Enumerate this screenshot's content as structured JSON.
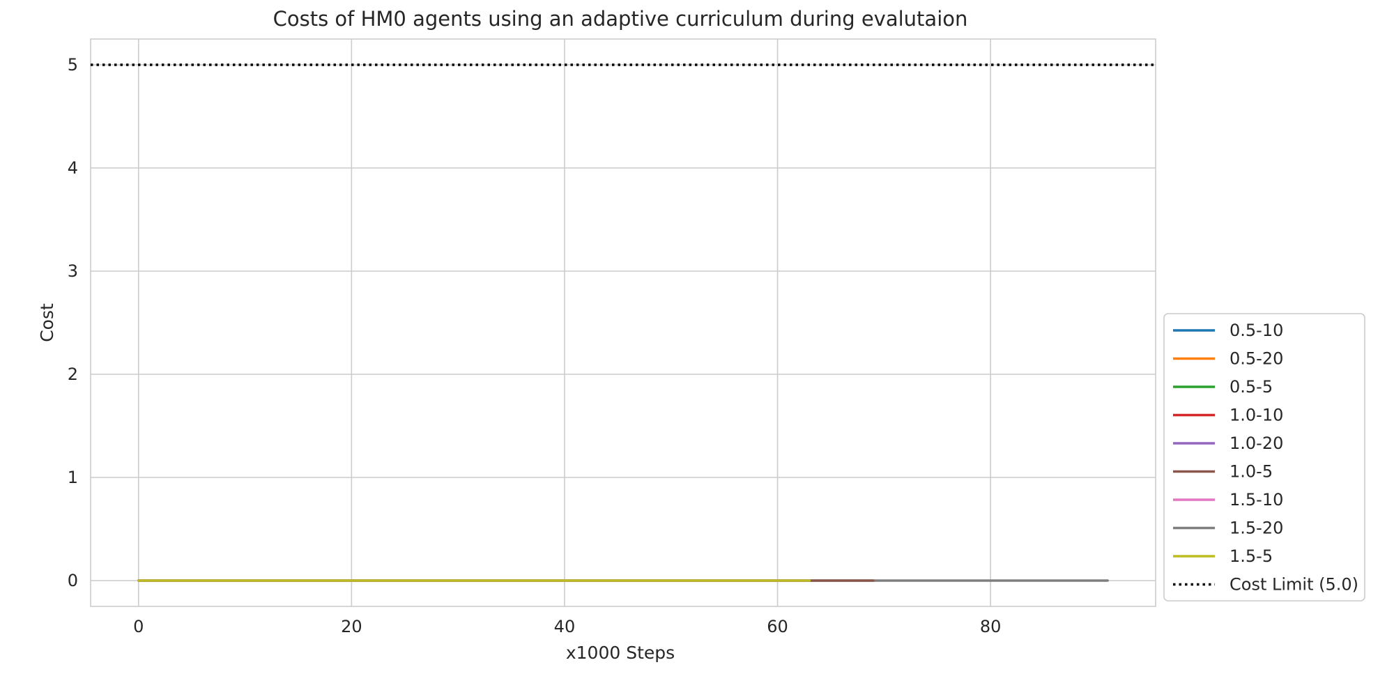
{
  "chart_data": {
    "type": "line",
    "title": "Costs of HM0 agents using an adaptive curriculum during evalutaion",
    "xlabel": "x1000 Steps",
    "ylabel": "Cost",
    "xlim": [
      -4.5,
      95.5
    ],
    "ylim": [
      -0.25,
      5.25
    ],
    "xticks": [
      0,
      20,
      40,
      60,
      80
    ],
    "yticks": [
      0,
      1,
      2,
      3,
      4,
      5
    ],
    "grid": true,
    "legend_position": "lower-right, outside plot area",
    "series": [
      {
        "name": "0.5-10",
        "color": "#1f77b4",
        "x": [
          0,
          63
        ],
        "y": [
          0,
          0
        ]
      },
      {
        "name": "0.5-20",
        "color": "#ff7f0e",
        "x": [
          0,
          63
        ],
        "y": [
          0,
          0
        ]
      },
      {
        "name": "0.5-5",
        "color": "#2ca02c",
        "x": [
          0,
          63
        ],
        "y": [
          0,
          0
        ]
      },
      {
        "name": "1.0-10",
        "color": "#d62728",
        "x": [
          0,
          63
        ],
        "y": [
          0,
          0
        ]
      },
      {
        "name": "1.0-20",
        "color": "#9467bd",
        "x": [
          0,
          63
        ],
        "y": [
          0,
          0
        ]
      },
      {
        "name": "1.0-5",
        "color": "#8c564b",
        "x": [
          0,
          69
        ],
        "y": [
          0,
          0
        ]
      },
      {
        "name": "1.5-10",
        "color": "#e377c2",
        "x": [
          0,
          63
        ],
        "y": [
          0,
          0
        ]
      },
      {
        "name": "1.5-20",
        "color": "#7f7f7f",
        "x": [
          0,
          91
        ],
        "y": [
          0,
          0
        ]
      },
      {
        "name": "1.5-5",
        "color": "#bcbd22",
        "x": [
          0,
          63
        ],
        "y": [
          0,
          0
        ]
      }
    ],
    "reference_line": {
      "name": "Cost Limit (5.0)",
      "y": 5.0,
      "color": "#000000",
      "style": "dotted"
    }
  }
}
